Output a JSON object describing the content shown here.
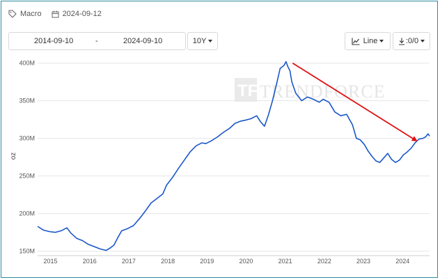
{
  "meta": {
    "tag_label": "Macro",
    "date": "2024-09-12",
    "tag_icon": "tag-icon",
    "date_icon": "calendar-icon"
  },
  "toolbar": {
    "start_date": "2014-09-10",
    "separator": "-",
    "end_date": "2024-09-10",
    "range_label": "10Y",
    "chart_type_label": "Line",
    "download_label": ":0/0",
    "chart_type_icon": "line-chart-icon",
    "download_icon": "download-icon"
  },
  "watermark": {
    "text": "TRENDFORCE",
    "logo_letters": "TF"
  },
  "colors": {
    "line": "#1a57c9",
    "arrow": "#e01010",
    "frame": "#2d8a9e",
    "grid": "#e6e6e6"
  },
  "chart_data": {
    "type": "line",
    "title": "",
    "xlabel": "",
    "ylabel": "oz",
    "y_ticks": [
      150,
      200,
      250,
      300,
      350,
      400
    ],
    "y_tick_labels": [
      "150M",
      "200M",
      "250M",
      "300M",
      "350M",
      "400M"
    ],
    "y_range": [
      145,
      408
    ],
    "x_range": [
      2014.7,
      2024.72
    ],
    "x_ticks": [
      2015,
      2016,
      2017,
      2018,
      2019,
      2020,
      2021,
      2022,
      2023,
      2024
    ],
    "x_tick_labels": [
      "2015",
      "2016",
      "2017",
      "2018",
      "2019",
      "2020",
      "2021",
      "2022",
      "2023",
      "2024"
    ],
    "grid": "horizontal",
    "series": [
      {
        "x": [
          2014.7,
          2014.85,
          2015.0,
          2015.15,
          2015.3,
          2015.45,
          2015.55,
          2015.7,
          2015.85,
          2016.0,
          2016.15,
          2016.3,
          2016.45,
          2016.55,
          2016.65,
          2016.75,
          2016.85,
          2017.0,
          2017.15,
          2017.3,
          2017.45,
          2017.6,
          2017.75,
          2017.9,
          2018.0,
          2018.15,
          2018.3,
          2018.45,
          2018.6,
          2018.75,
          2018.9,
          2019.0,
          2019.15,
          2019.3,
          2019.45,
          2019.6,
          2019.75,
          2019.9,
          2020.0,
          2020.15,
          2020.3,
          2020.4,
          2020.5,
          2020.6,
          2020.7,
          2020.8,
          2020.9,
          2021.0,
          2021.05,
          2021.1,
          2021.15,
          2021.2,
          2021.3,
          2021.45,
          2021.6,
          2021.75,
          2021.9,
          2022.0,
          2022.15,
          2022.3,
          2022.45,
          2022.6,
          2022.75,
          2022.85,
          2022.95,
          2023.05,
          2023.15,
          2023.25,
          2023.35,
          2023.45,
          2023.55,
          2023.65,
          2023.75,
          2023.85,
          2023.95,
          2024.05,
          2024.15,
          2024.25,
          2024.35,
          2024.45,
          2024.55,
          2024.62,
          2024.68,
          2024.72
        ],
        "values": [
          183,
          178,
          176,
          175,
          177,
          181,
          174,
          167,
          164,
          159,
          156,
          153,
          151,
          154,
          158,
          168,
          177,
          180,
          184,
          193,
          203,
          214,
          220,
          226,
          238,
          248,
          260,
          271,
          282,
          290,
          294,
          293,
          297,
          302,
          308,
          313,
          320,
          323,
          324,
          326,
          330,
          322,
          316,
          331,
          349,
          370,
          393,
          397,
          402,
          395,
          390,
          375,
          360,
          350,
          355,
          352,
          348,
          352,
          348,
          335,
          330,
          332,
          318,
          300,
          298,
          292,
          283,
          276,
          270,
          268,
          274,
          280,
          272,
          268,
          271,
          278,
          282,
          287,
          294,
          299,
          300,
          302,
          306,
          303
        ]
      }
    ],
    "annotations": [
      {
        "type": "arrow",
        "x1": 2021.22,
        "y1": 400,
        "x2": 2024.38,
        "y2": 297
      }
    ]
  }
}
